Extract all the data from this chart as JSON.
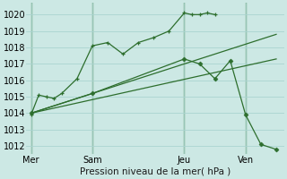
{
  "bg_color": "#cce8e4",
  "grid_color": "#aad4d0",
  "line_color": "#2d6e2d",
  "vline_color": "#3a7a3a",
  "title": "Pression niveau de la mer( hPa )",
  "yticks": [
    1012,
    1013,
    1014,
    1015,
    1016,
    1017,
    1018,
    1019,
    1020
  ],
  "ylim": [
    1011.5,
    1020.7
  ],
  "xtick_labels": [
    "Mer",
    "Sam",
    "Jeu",
    "Ven"
  ],
  "xtick_positions": [
    0,
    4,
    10,
    14
  ],
  "xlim": [
    -0.3,
    16.5
  ],
  "vlines": [
    0,
    4,
    10,
    14
  ],
  "series": [
    {
      "x": [
        0,
        0.5,
        1,
        1.5,
        2,
        3,
        4,
        5,
        6,
        7,
        8,
        9,
        10,
        10.5,
        11,
        11.5,
        12
      ],
      "y": [
        1013.9,
        1015.1,
        1015.0,
        1014.9,
        1015.2,
        1016.1,
        1018.1,
        1018.3,
        1017.6,
        1018.3,
        1018.6,
        1019.0,
        1020.1,
        1020.0,
        1020.0,
        1020.1,
        1020.0
      ],
      "marker": "+"
    },
    {
      "x": [
        0,
        16
      ],
      "y": [
        1014.0,
        1018.8
      ],
      "marker": null
    },
    {
      "x": [
        0,
        16
      ],
      "y": [
        1014.0,
        1017.3
      ],
      "marker": null
    },
    {
      "x": [
        0,
        4,
        10,
        11,
        12,
        13,
        14,
        15,
        16
      ],
      "y": [
        1014.0,
        1015.2,
        1017.3,
        1017.0,
        1016.1,
        1017.2,
        1013.9,
        1012.1,
        1011.8
      ],
      "marker": "D"
    }
  ]
}
